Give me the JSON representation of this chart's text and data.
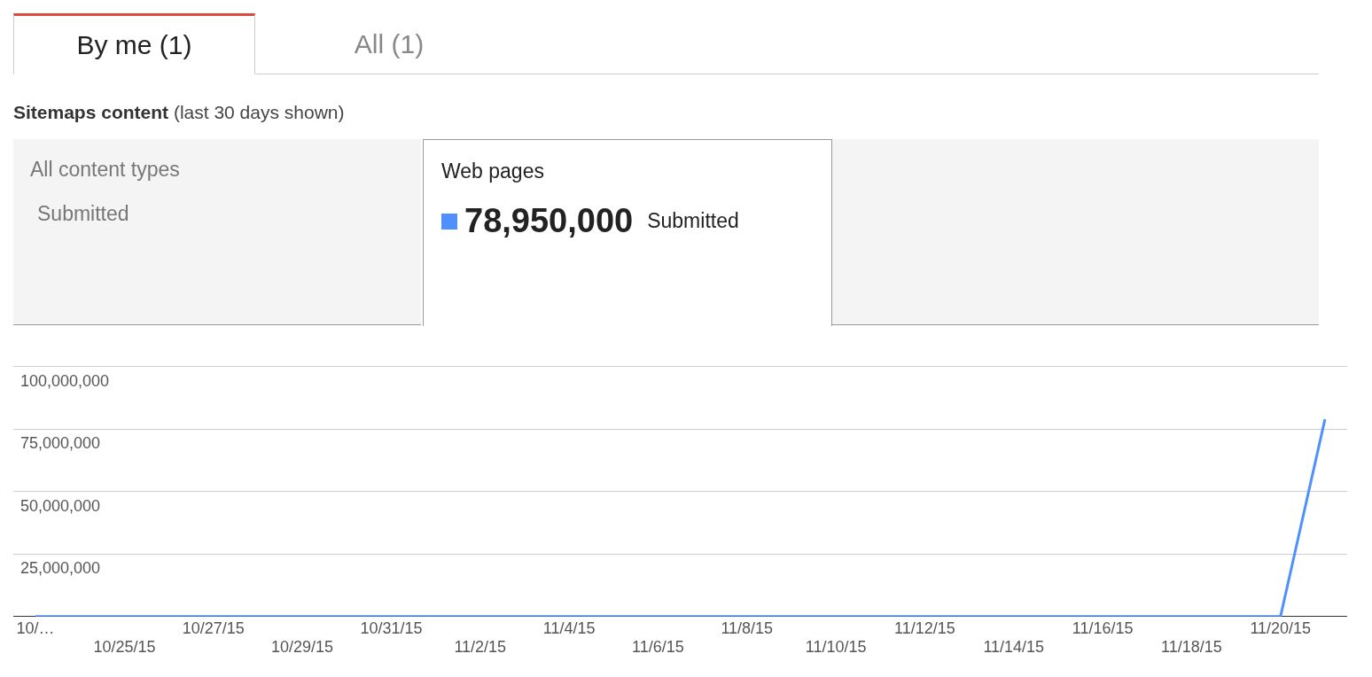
{
  "chart_data": {
    "type": "line",
    "title": "Sitemaps content",
    "subtitle": "(last 30 days shown)",
    "annotations": [
      "By me (1)",
      "All (1)",
      "All content types",
      "Submitted",
      "Web pages",
      "78,950,000"
    ],
    "categories": [
      "10/…",
      null,
      "10/25/15",
      null,
      "10/27/15",
      null,
      "10/29/15",
      null,
      "10/31/15",
      null,
      "11/2/15",
      null,
      "11/4/15",
      null,
      "11/6/15",
      null,
      "11/8/15",
      null,
      "11/10/15",
      null,
      "11/12/15",
      null,
      "11/14/15",
      null,
      "11/16/15",
      null,
      "11/18/15",
      null,
      "11/20/15",
      null
    ],
    "series": [
      {
        "name": "Submitted",
        "color": "#4d90fe",
        "values": [
          0,
          0,
          0,
          0,
          0,
          0,
          0,
          0,
          0,
          0,
          0,
          0,
          0,
          0,
          0,
          0,
          0,
          0,
          0,
          0,
          0,
          0,
          0,
          0,
          0,
          0,
          0,
          0,
          0,
          78950000
        ]
      }
    ],
    "ylim": [
      0,
      100000000
    ],
    "yticks": [
      {
        "value": 0,
        "label": null
      },
      {
        "value": 25000000,
        "label": "25,000,000"
      },
      {
        "value": 50000000,
        "label": "50,000,000"
      },
      {
        "value": 75000000,
        "label": "75,000,000"
      },
      {
        "value": 100000000,
        "label": "100,000,000"
      }
    ],
    "grid": "y",
    "legend": "top left",
    "marker": "none",
    "line_style": "solid"
  }
}
